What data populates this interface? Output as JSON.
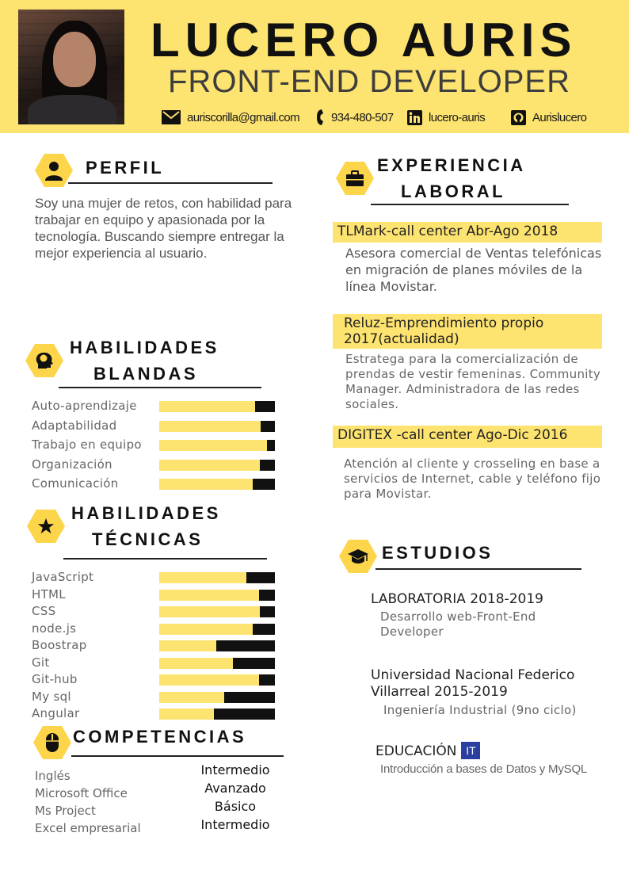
{
  "header": {
    "name": "LUCERO AURIS",
    "role": "FRONT-END DEVELOPER",
    "contacts": {
      "email": "auriscorilla@gmail.com",
      "phone": "934-480-507",
      "linkedin": "lucero-auris",
      "github": "Aurislucero"
    }
  },
  "perfil": {
    "title": "PERFIL",
    "text": "Soy una mujer de retos, con habilidad para trabajar en equipo y apasionada por la tecnología. Buscando siempre entregar la mejor experiencia al usuario."
  },
  "soft_skills": {
    "title_line1": "HABILIDADES",
    "title_line2": "BLANDAS",
    "items": [
      {
        "name": "Auto-aprendizaje",
        "level": 0.83
      },
      {
        "name": "Adaptabilidad",
        "level": 0.88
      },
      {
        "name": "Trabajo en equipo",
        "level": 0.93
      },
      {
        "name": "Organización",
        "level": 0.87
      },
      {
        "name": "Comunicación",
        "level": 0.81
      }
    ]
  },
  "tech_skills": {
    "title_line1": "HABILIDADES",
    "title_line2": "TÉCNICAS",
    "items": [
      {
        "name": "JavaScript",
        "level": 0.75
      },
      {
        "name": "HTML",
        "level": 0.86
      },
      {
        "name": "CSS",
        "level": 0.87
      },
      {
        "name": "node.js",
        "level": 0.81
      },
      {
        "name": "Boostrap",
        "level": 0.49
      },
      {
        "name": "Git",
        "level": 0.64
      },
      {
        "name": "Git-hub",
        "level": 0.86
      },
      {
        "name": "My sql",
        "level": 0.56
      },
      {
        "name": "Angular",
        "level": 0.47
      }
    ]
  },
  "competencias": {
    "title": "COMPETENCIAS",
    "items": [
      {
        "name": "Inglés",
        "level": "Intermedio"
      },
      {
        "name": "Microsoft Office",
        "level": "Avanzado"
      },
      {
        "name": "Ms Project",
        "level": "Básico"
      },
      {
        "name": "Excel empresarial",
        "level": "Intermedio"
      }
    ]
  },
  "experiencia": {
    "title_line1": "EXPERIENCIA",
    "title_line2": "LABORAL",
    "jobs": [
      {
        "heading": "TLMark-call center  Abr-Ago 2018",
        "description": "Asesora comercial de Ventas telefónicas en migración de planes móviles de la línea Movistar."
      },
      {
        "heading": "Reluz-Emprendimiento propio 2017(actualidad)",
        "description": "Estratega para la comercialización de prendas de vestir femeninas. Community Manager. Administradora de las redes sociales."
      },
      {
        "heading": "DIGITEX -call center   Ago-Dic 2016",
        "description": "Atención al cliente y crosseling en base a servicios de Internet, cable y teléfono fijo para  Movistar."
      }
    ]
  },
  "estudios": {
    "title": "ESTUDIOS",
    "items": [
      {
        "title": "LABORATORIA  2018-2019",
        "detail": "Desarrollo web-Front-End Developer"
      },
      {
        "title": "Universidad Nacional Federico Villarreal 2015-2019",
        "detail": "Ingeniería Industrial (9no ciclo)"
      },
      {
        "title": "EDUCACIÓN",
        "badge": "IT",
        "detail": "Introducción a bases de Datos y MySQL"
      }
    ]
  },
  "colors": {
    "accent": "#fde36f",
    "hex_icon": "#fdd54a",
    "bar_track": "#111111",
    "badge": "#2a3fa0"
  }
}
